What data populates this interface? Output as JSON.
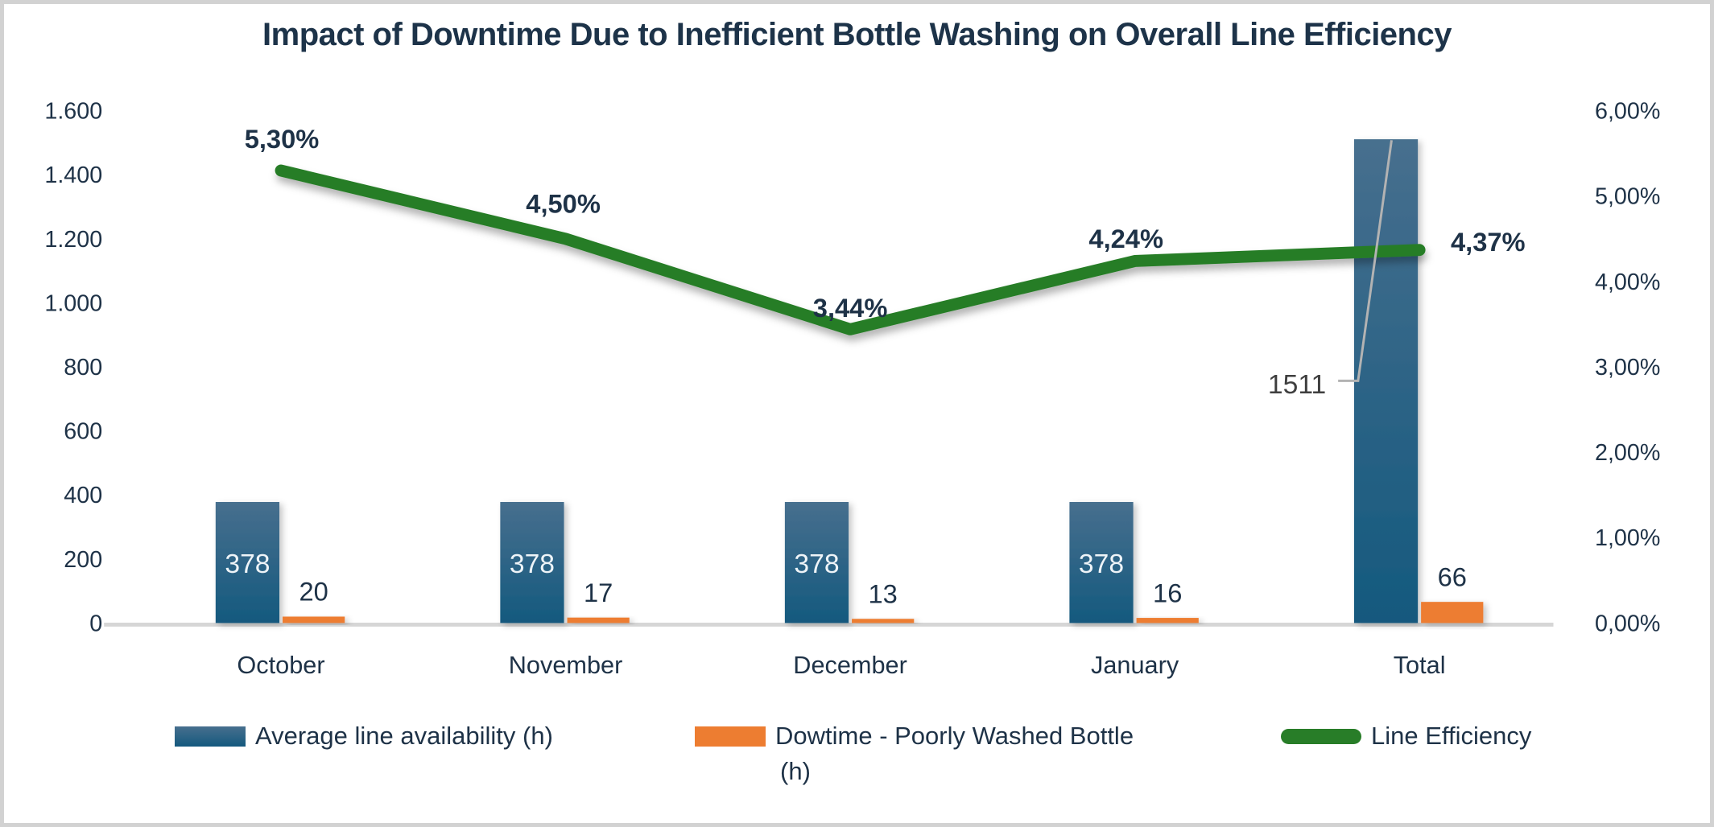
{
  "colors": {
    "title_text": "#1d3349",
    "axis_text": "#1e3247",
    "bar_blue_top": "#476f8e",
    "bar_blue_bottom": "#14597e",
    "orange": "#ed7d31",
    "green": "#287d28",
    "baseline_gray": "#d6d6d6",
    "leader_gray": "#b3b3b3",
    "callout_text": "#3f3f3f",
    "bar_label_white": "#eef4f8"
  },
  "chart_data": {
    "type": "combo",
    "title": "Impact of Downtime Due to Inefficient Bottle Washing on Overall Line Efficiency",
    "categories": [
      "October",
      "November",
      "December",
      "January",
      "Total"
    ],
    "series": [
      {
        "name": "Average line availability (h)",
        "chart_type": "bar",
        "axis": "left",
        "values": [
          378,
          378,
          378,
          378,
          1511
        ],
        "data_labels": [
          "378",
          "378",
          "378",
          "378",
          "1511"
        ]
      },
      {
        "name": "Dowtime - Poorly Washed Bottle (h)",
        "chart_type": "bar",
        "axis": "left",
        "values": [
          20,
          17,
          13,
          16,
          66
        ],
        "data_labels": [
          "20",
          "17",
          "13",
          "16",
          "66"
        ]
      },
      {
        "name": "Line Efficiency",
        "chart_type": "line",
        "axis": "right",
        "values": [
          5.3,
          4.5,
          3.44,
          4.24,
          4.37
        ],
        "data_labels": [
          "5,30%",
          "4,50%",
          "3,44%",
          "4,24%",
          "4,37%"
        ]
      }
    ],
    "left_axis": {
      "min": 0,
      "max": 1600,
      "tick_labels": [
        "1.600",
        "1.400",
        "1.200",
        "1.000",
        "800",
        "600",
        "400",
        "200",
        "0"
      ]
    },
    "right_axis": {
      "min": 0,
      "max": 6,
      "tick_labels": [
        "6,00%",
        "5,00%",
        "4,00%",
        "3,00%",
        "2,00%",
        "1,00%",
        "0,00%"
      ]
    },
    "annotations": {
      "total_callout_label": "1511"
    },
    "legend": {
      "position": "bottom",
      "items": [
        {
          "label": "Average line availability (h)",
          "swatch": "rect-blue"
        },
        {
          "label_lines": [
            "Dowtime - Poorly Washed Bottle",
            "(h)"
          ],
          "swatch": "rect-orange"
        },
        {
          "label": "Line Efficiency",
          "swatch": "line-green"
        }
      ]
    },
    "grid": "off"
  }
}
